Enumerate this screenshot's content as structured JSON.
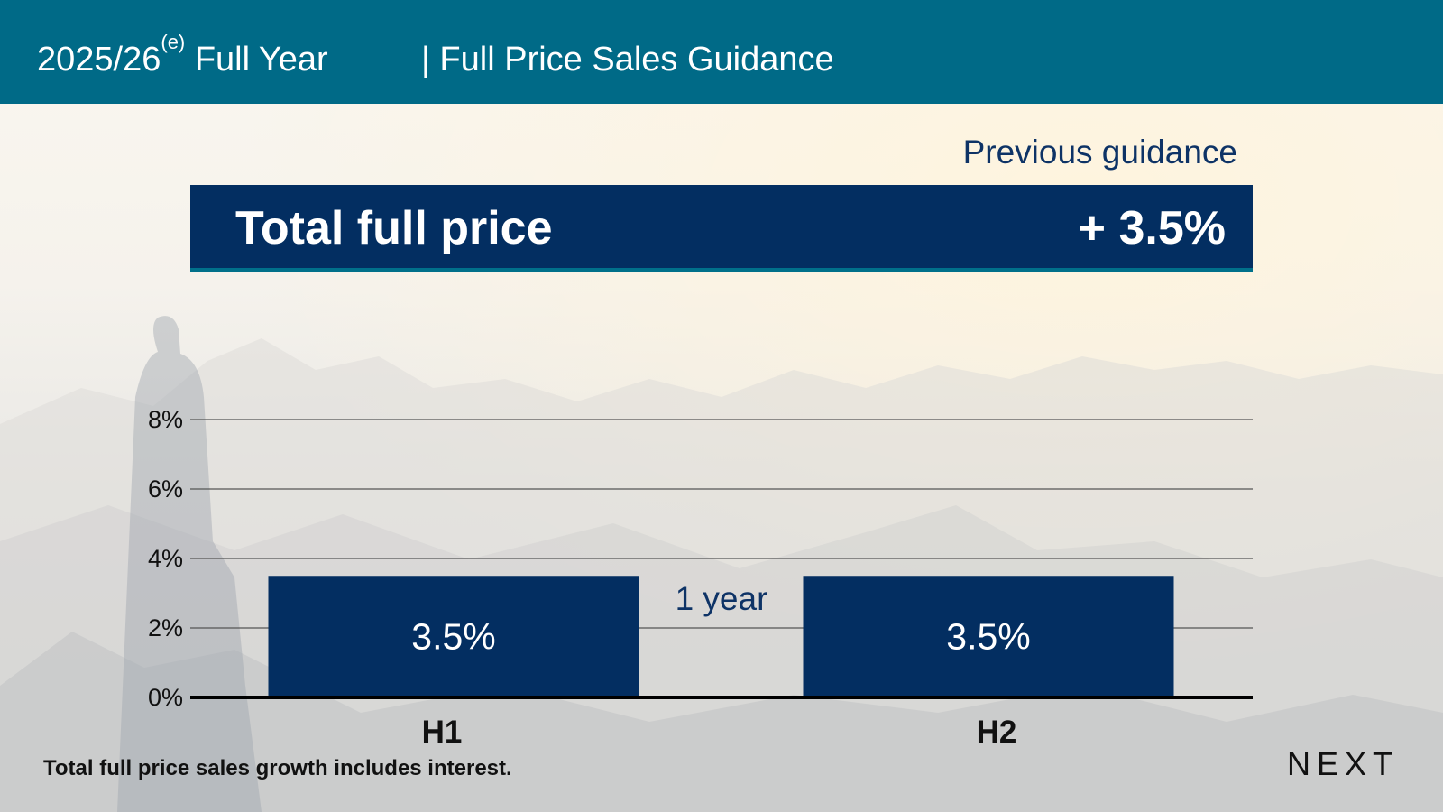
{
  "header": {
    "period": "2025/26",
    "period_suffix": "(e)",
    "period_label": "Full Year",
    "section_title": "| Full Price Sales Guidance"
  },
  "previous_guidance_label": "Previous guidance",
  "banner": {
    "label": "Total full price",
    "value": "+ 3.5%"
  },
  "chart_data": {
    "type": "bar",
    "categories": [
      "H1",
      "H2"
    ],
    "values": [
      3.5,
      3.5
    ],
    "data_labels": [
      "3.5%",
      "3.5%"
    ],
    "annotation": "1 year",
    "y_ticks": [
      0,
      2,
      4,
      6,
      8
    ],
    "y_tick_labels": [
      "0%",
      "2%",
      "4%",
      "6%",
      "8%"
    ],
    "ylim": [
      0,
      8
    ],
    "grid": true,
    "bar_color": "#032e61"
  },
  "footnote": "Total full price sales growth includes interest.",
  "logo": "NEXT",
  "colors": {
    "header": "#006a87",
    "navy": "#032e61",
    "accent_line": "#00708a"
  }
}
